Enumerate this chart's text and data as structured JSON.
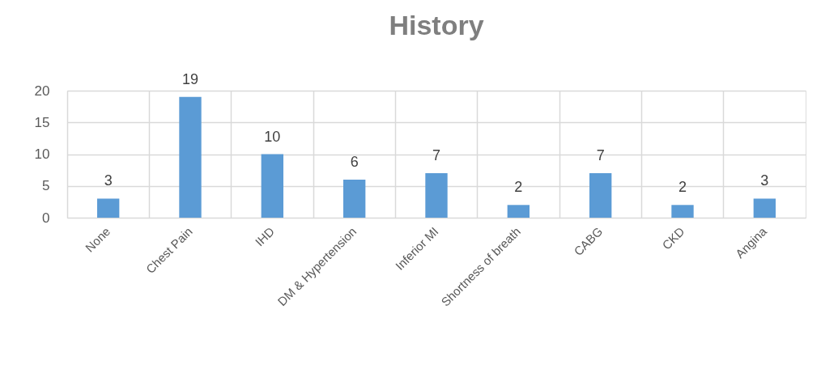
{
  "chart_data": {
    "type": "bar",
    "title": "History",
    "categories": [
      "None",
      "Chest Pain",
      "IHD",
      "DM & Hypertension",
      "Inferior MI",
      "Shortness of breath",
      "CABG",
      "CKD",
      "Angina"
    ],
    "values": [
      3,
      19,
      10,
      6,
      7,
      2,
      7,
      2,
      3
    ],
    "color": "#5b9bd5",
    "ylim": [
      0,
      20
    ],
    "yticks": [
      0,
      5,
      10,
      15,
      20
    ],
    "grid": true,
    "data_labels": true
  }
}
